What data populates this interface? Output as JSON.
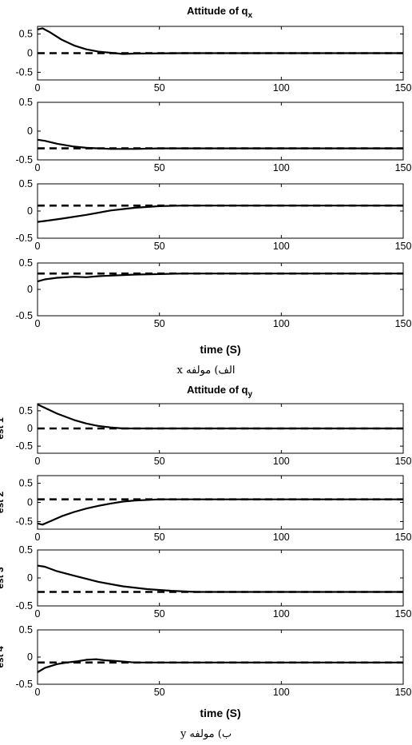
{
  "figures": [
    {
      "title_main": "Attitude of q",
      "title_sub": "x",
      "xlabel": "time (S)",
      "caption": "الف) مولفه x",
      "ylabels": [
        "",
        "",
        "",
        ""
      ]
    },
    {
      "title_main": "Attitude of q",
      "title_sub": "y",
      "xlabel": "time (S)",
      "caption": "ب) مولفه y",
      "ylabels": [
        "est 1",
        "est 2",
        "est 3",
        "est 4"
      ]
    }
  ],
  "chart_data": [
    {
      "type": "line",
      "figure": 0,
      "panel": 0,
      "xlim": [
        0,
        150
      ],
      "ylim": [
        -0.7,
        0.7
      ],
      "xticks": [
        0,
        50,
        100,
        150
      ],
      "yticks": [
        0.5,
        0,
        -0.5
      ],
      "ytick_labels": [
        "0.5",
        "0",
        "-0.5"
      ],
      "series": [
        {
          "style": "solid",
          "x": [
            0,
            2,
            5,
            10,
            15,
            20,
            25,
            30,
            35,
            40,
            60,
            80,
            100,
            150
          ],
          "y": [
            0.62,
            0.65,
            0.55,
            0.35,
            0.2,
            0.1,
            0.04,
            0.01,
            -0.02,
            -0.01,
            0,
            0,
            0,
            0
          ]
        },
        {
          "style": "dashed",
          "x": [
            0,
            150
          ],
          "y": [
            0,
            0
          ]
        }
      ]
    },
    {
      "type": "line",
      "figure": 0,
      "panel": 1,
      "xlim": [
        0,
        150
      ],
      "ylim": [
        -0.5,
        0.5
      ],
      "xticks": [
        0,
        50,
        100,
        150
      ],
      "yticks": [
        0.5,
        0,
        -0.5
      ],
      "ytick_labels": [
        "0.5",
        "0",
        "-0.5"
      ],
      "series": [
        {
          "style": "solid",
          "x": [
            0,
            3,
            8,
            15,
            20,
            25,
            30,
            40,
            50,
            150
          ],
          "y": [
            -0.15,
            -0.17,
            -0.22,
            -0.27,
            -0.29,
            -0.3,
            -0.31,
            -0.31,
            -0.3,
            -0.3
          ]
        },
        {
          "style": "dashed",
          "x": [
            0,
            150
          ],
          "y": [
            -0.3,
            -0.3
          ]
        }
      ]
    },
    {
      "type": "line",
      "figure": 0,
      "panel": 2,
      "xlim": [
        0,
        150
      ],
      "ylim": [
        -0.5,
        0.5
      ],
      "xticks": [
        0,
        50,
        100,
        150
      ],
      "yticks": [
        0.5,
        0,
        -0.5
      ],
      "ytick_labels": [
        "0.5",
        "0",
        "-0.5"
      ],
      "series": [
        {
          "style": "solid",
          "x": [
            0,
            5,
            10,
            20,
            30,
            40,
            50,
            60,
            150
          ],
          "y": [
            -0.2,
            -0.17,
            -0.14,
            -0.07,
            0.01,
            0.06,
            0.09,
            0.1,
            0.1
          ]
        },
        {
          "style": "dashed",
          "x": [
            0,
            150
          ],
          "y": [
            0.1,
            0.1
          ]
        }
      ]
    },
    {
      "type": "line",
      "figure": 0,
      "panel": 3,
      "xlim": [
        0,
        150
      ],
      "ylim": [
        -0.5,
        0.5
      ],
      "xticks": [
        0,
        50,
        100,
        150
      ],
      "yticks": [
        0.5,
        0,
        -0.5
      ],
      "ytick_labels": [
        "0.5",
        "0",
        "-0.5"
      ],
      "series": [
        {
          "style": "solid",
          "x": [
            0,
            3,
            8,
            15,
            20,
            25,
            30,
            40,
            50,
            60,
            150
          ],
          "y": [
            0.15,
            0.19,
            0.22,
            0.24,
            0.23,
            0.25,
            0.26,
            0.28,
            0.29,
            0.3,
            0.3
          ]
        },
        {
          "style": "dashed",
          "x": [
            0,
            150
          ],
          "y": [
            0.3,
            0.3
          ]
        }
      ]
    },
    {
      "type": "line",
      "figure": 1,
      "panel": 0,
      "xlim": [
        0,
        150
      ],
      "ylim": [
        -0.7,
        0.7
      ],
      "xticks": [
        0,
        50,
        100,
        150
      ],
      "yticks": [
        0.5,
        0,
        -0.5
      ],
      "ytick_labels": [
        "0.5",
        "0",
        "-0.5"
      ],
      "series": [
        {
          "style": "solid",
          "x": [
            0,
            3,
            8,
            15,
            20,
            25,
            30,
            35,
            40,
            60,
            150
          ],
          "y": [
            0.68,
            0.58,
            0.42,
            0.24,
            0.14,
            0.07,
            0.03,
            0,
            0,
            0,
            0
          ]
        },
        {
          "style": "dashed",
          "x": [
            0,
            150
          ],
          "y": [
            0,
            0
          ]
        }
      ]
    },
    {
      "type": "line",
      "figure": 1,
      "panel": 1,
      "xlim": [
        0,
        150
      ],
      "ylim": [
        -0.7,
        0.7
      ],
      "xticks": [
        0,
        50,
        100,
        150
      ],
      "yticks": [
        0.5,
        0,
        -0.5
      ],
      "ytick_labels": [
        "0.5",
        "0",
        "-0.5"
      ],
      "series": [
        {
          "style": "solid",
          "x": [
            0,
            2,
            5,
            10,
            15,
            20,
            25,
            30,
            35,
            40,
            50,
            60,
            150
          ],
          "y": [
            -0.55,
            -0.58,
            -0.5,
            -0.36,
            -0.25,
            -0.16,
            -0.09,
            -0.03,
            0.02,
            0.05,
            0.08,
            0.08,
            0.08
          ]
        },
        {
          "style": "dashed",
          "x": [
            0,
            150
          ],
          "y": [
            0.08,
            0.08
          ]
        }
      ]
    },
    {
      "type": "line",
      "figure": 1,
      "panel": 2,
      "xlim": [
        0,
        150
      ],
      "ylim": [
        -0.5,
        0.5
      ],
      "xticks": [
        0,
        50,
        100,
        150
      ],
      "yticks": [
        0.5,
        0,
        -0.5
      ],
      "ytick_labels": [
        "0.5",
        "0",
        "-0.5"
      ],
      "series": [
        {
          "style": "solid",
          "x": [
            0,
            3,
            8,
            15,
            25,
            35,
            45,
            55,
            65,
            150
          ],
          "y": [
            0.22,
            0.2,
            0.12,
            0.04,
            -0.07,
            -0.15,
            -0.2,
            -0.23,
            -0.25,
            -0.25
          ]
        },
        {
          "style": "dashed",
          "x": [
            0,
            150
          ],
          "y": [
            -0.25,
            -0.25
          ]
        }
      ]
    },
    {
      "type": "line",
      "figure": 1,
      "panel": 3,
      "xlim": [
        0,
        150
      ],
      "ylim": [
        -0.5,
        0.5
      ],
      "xticks": [
        0,
        50,
        100,
        150
      ],
      "yticks": [
        0.5,
        0,
        -0.5
      ],
      "ytick_labels": [
        "0.5",
        "0",
        "-0.5"
      ],
      "series": [
        {
          "style": "solid",
          "x": [
            0,
            3,
            8,
            12,
            16,
            20,
            24,
            28,
            32,
            40,
            60,
            150
          ],
          "y": [
            -0.28,
            -0.2,
            -0.13,
            -0.1,
            -0.08,
            -0.05,
            -0.04,
            -0.06,
            -0.07,
            -0.1,
            -0.1,
            -0.1
          ]
        },
        {
          "style": "dashed",
          "x": [
            0,
            150
          ],
          "y": [
            -0.1,
            -0.1
          ]
        }
      ]
    }
  ]
}
